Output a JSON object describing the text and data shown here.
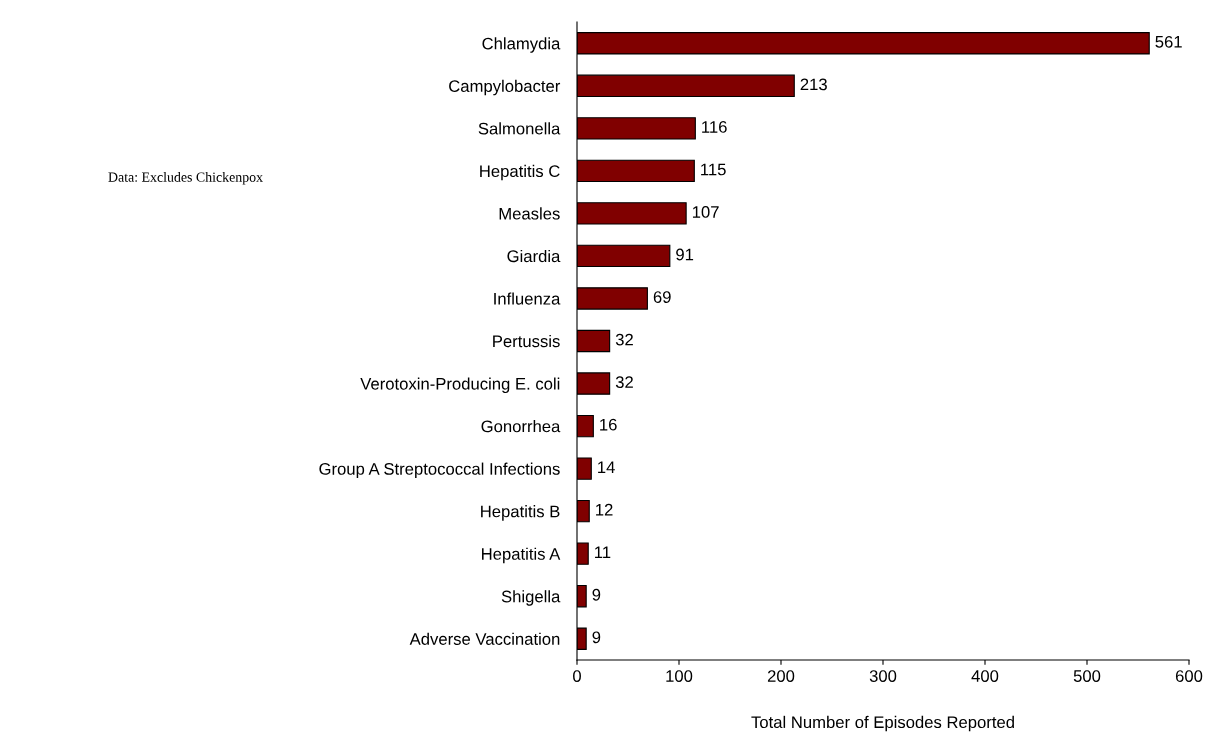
{
  "chart_data": {
    "type": "bar",
    "orientation": "horizontal",
    "categories": [
      "Chlamydia",
      "Campylobacter",
      "Salmonella",
      "Hepatitis C",
      "Measles",
      "Giardia",
      "Influenza",
      "Pertussis",
      "Verotoxin-Producing E. coli",
      "Gonorrhea",
      "Group A Streptococcal Infections",
      "Hepatitis B",
      "Hepatitis A",
      "Shigella",
      "Adverse Vaccination"
    ],
    "values": [
      561,
      213,
      116,
      115,
      107,
      91,
      69,
      32,
      32,
      16,
      14,
      12,
      11,
      9,
      9
    ],
    "color": "#800000",
    "xlabel": "Total Number of Episodes Reported",
    "xlim": [
      0,
      600
    ],
    "xticks": [
      0,
      100,
      200,
      300,
      400,
      500,
      600
    ],
    "data_labels": true,
    "grid": false,
    "legend": false,
    "annotations": [
      "Data: Excludes Chickenpox"
    ]
  }
}
